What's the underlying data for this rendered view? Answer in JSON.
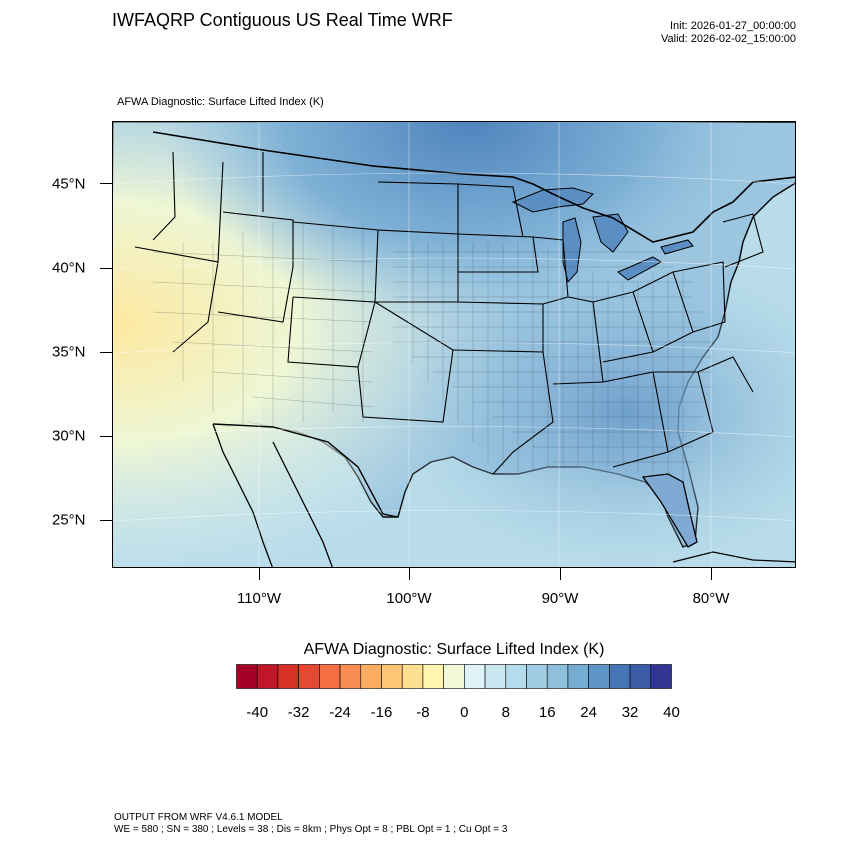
{
  "header": {
    "title": "IWFAQRP Contiguous US Real Time WRF",
    "init": "Init: 2026-01-27_00:00:00",
    "valid": "Valid: 2026-02-02_15:00:00"
  },
  "field_title": "AFWA Diagnostic: Surface Lifted Index   (K)",
  "map": {
    "lat_labels": [
      "45°N",
      "40°N",
      "35°N",
      "30°N",
      "25°N"
    ],
    "lon_labels": [
      "110°W",
      "100°W",
      "90°W",
      "80°W"
    ],
    "water_color": "#b8dcea",
    "land_color": "#9cc6e0",
    "border_color": "#000000"
  },
  "colorbar": {
    "title": "AFWA Diagnostic: Surface Lifted Index  (K)",
    "colors": [
      "#a50026",
      "#c1152a",
      "#d73027",
      "#e34a33",
      "#f46d43",
      "#f88d52",
      "#fdae61",
      "#fdc777",
      "#fee090",
      "#fff4b0",
      "#f2f9d8",
      "#e0f3f8",
      "#cbe8f2",
      "#b4dcec",
      "#a0cde3",
      "#8ec0dc",
      "#74add1",
      "#5e95c6",
      "#4575b4",
      "#3c5ca8",
      "#313695"
    ],
    "tick_labels": [
      "-40",
      "-32",
      "-24",
      "-16",
      "-8",
      "0",
      "8",
      "16",
      "24",
      "32",
      "40"
    ]
  },
  "footer": {
    "line1": "OUTPUT FROM WRF V4.6.1 MODEL",
    "line2": "WE = 580 ; SN = 380 ; Levels = 38 ; Dis = 8km ; Phys Opt = 8 ; PBL Opt = 1 ; Cu Opt = 3"
  }
}
